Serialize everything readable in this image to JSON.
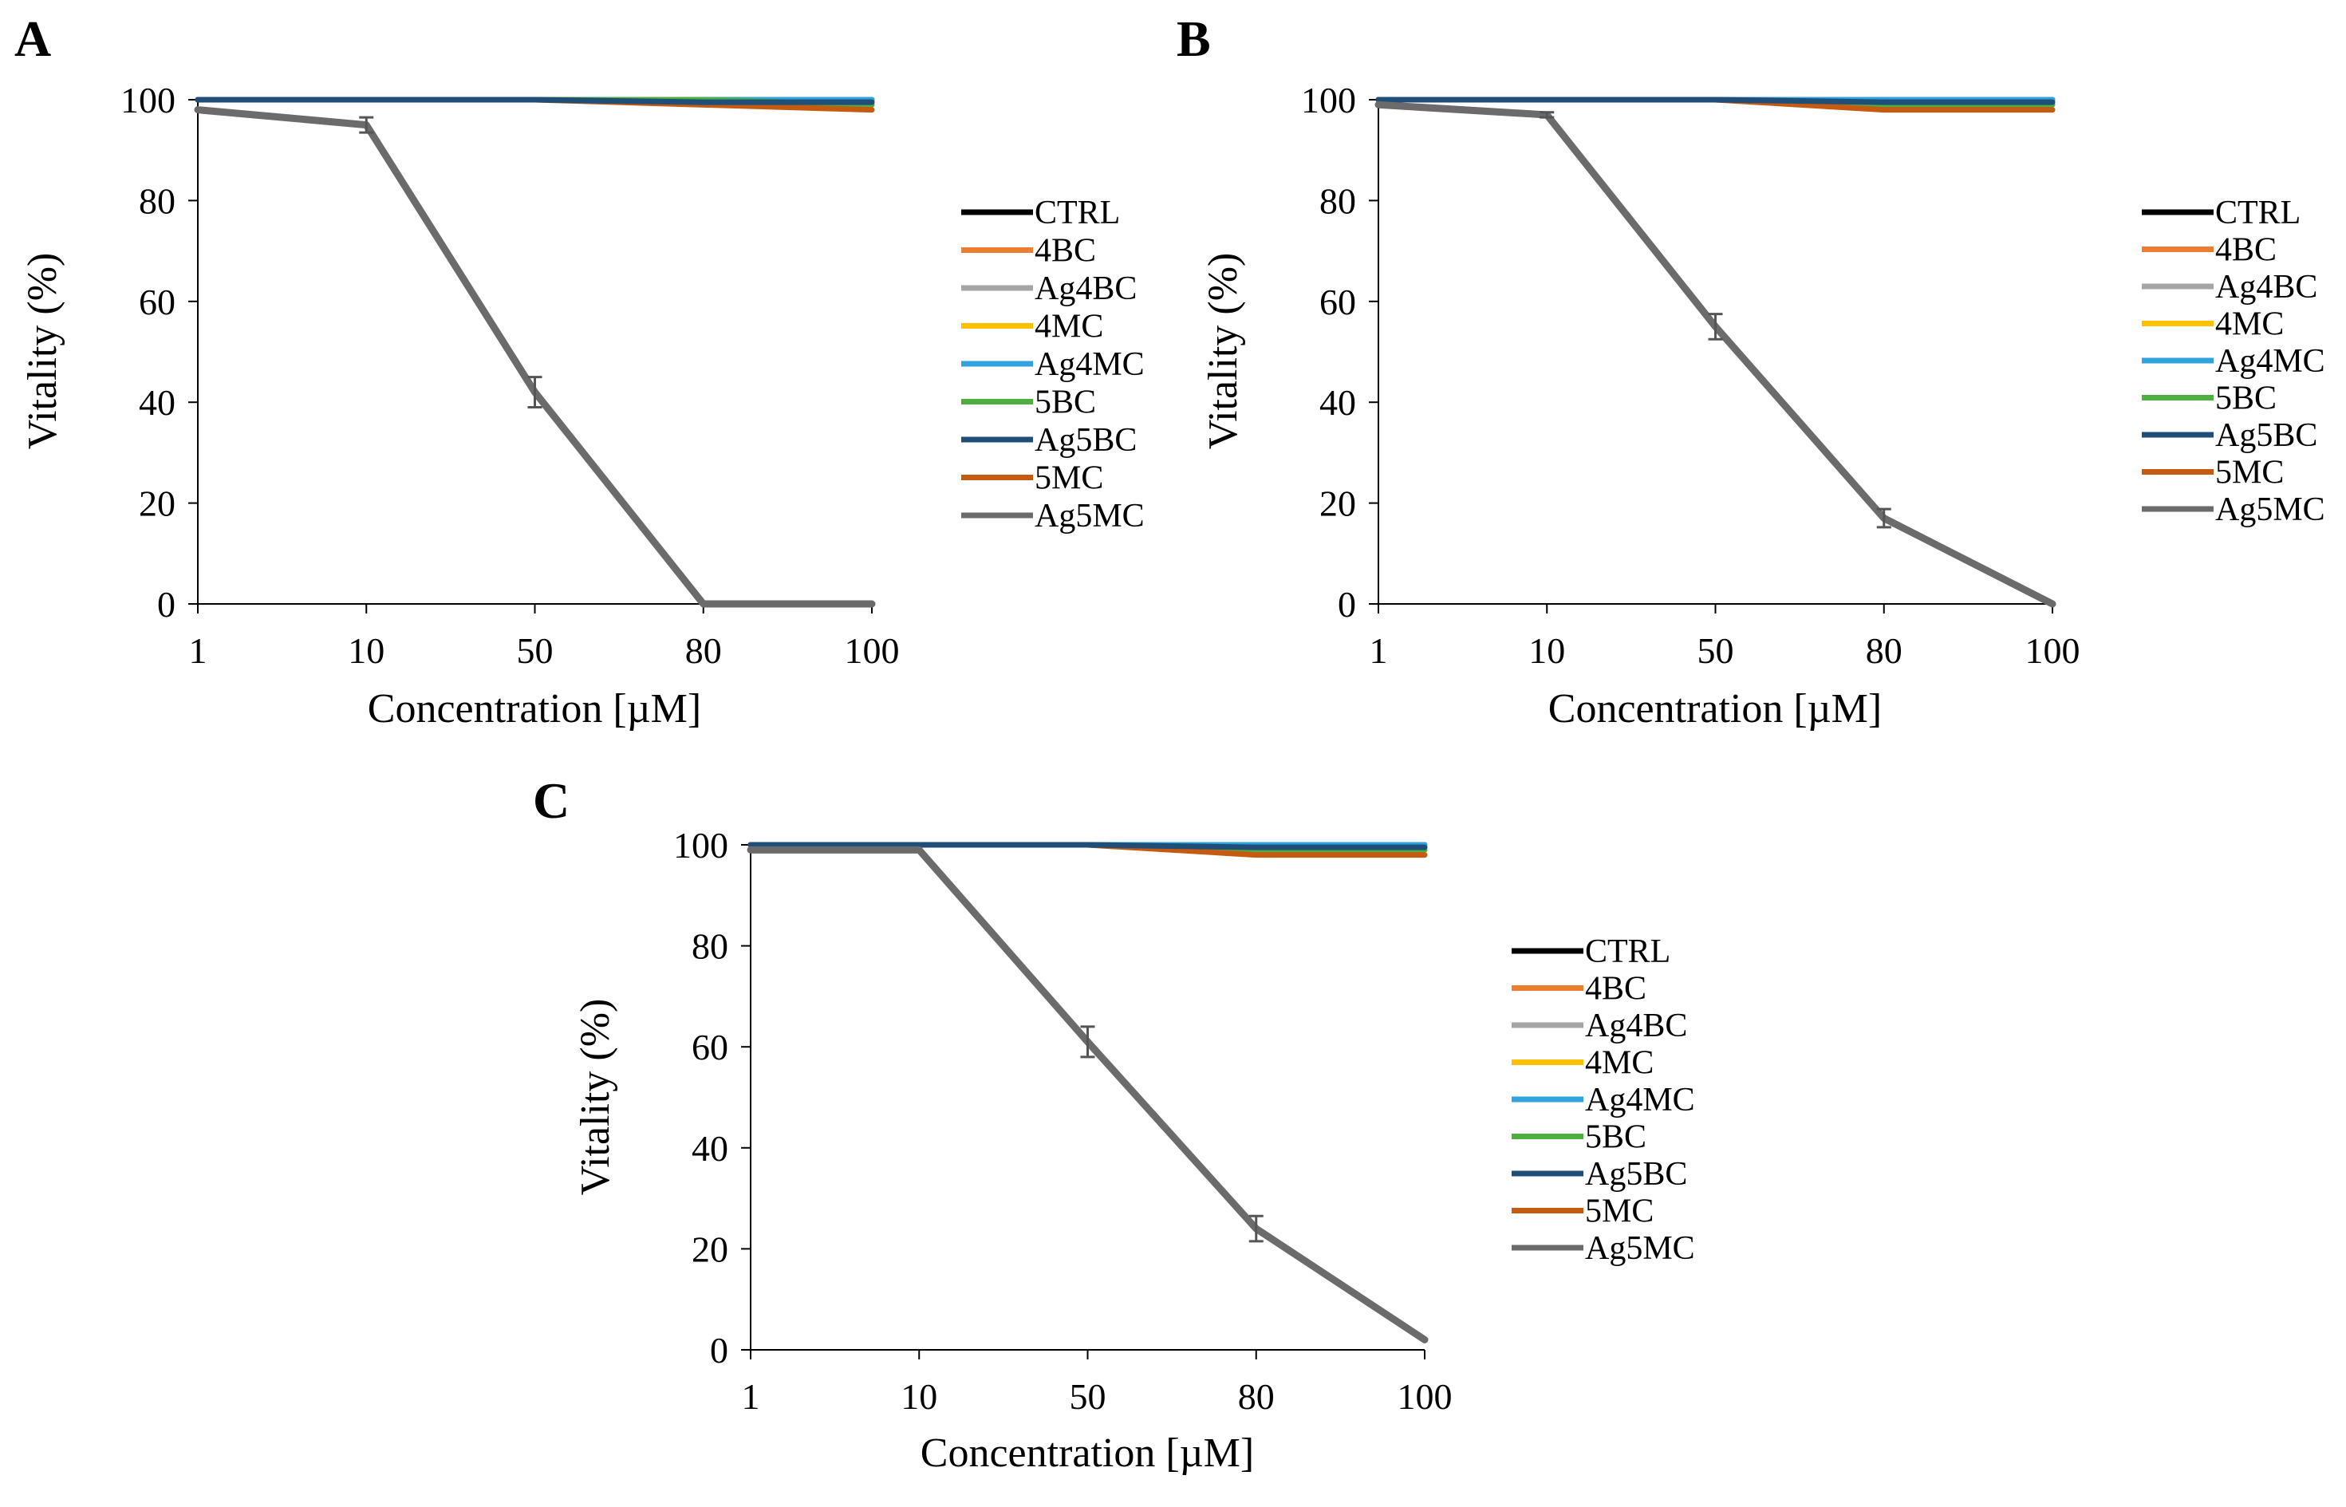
{
  "colors": {
    "CTRL": "#000000",
    "4BC": "#ED7D31",
    "Ag4BC": "#A5A5A5",
    "4MC": "#FFC000",
    "Ag4MC": "#2FA3DC",
    "5BC": "#4CAF3F",
    "Ag5BC": "#1F4E79",
    "5MC": "#C55A11",
    "Ag5MC": "#6B6B6B"
  },
  "chart_data": [
    {
      "type": "line",
      "panel": "A",
      "xlabel": "Concentration [µM]",
      "ylabel": "Vitality (%)",
      "categories": [
        "1",
        "10",
        "50",
        "80",
        "100"
      ],
      "ylim": [
        0,
        100
      ],
      "yticks": [
        0,
        20,
        40,
        60,
        80,
        100
      ],
      "legend_position": "right",
      "series": [
        {
          "name": "CTRL",
          "values": [
            100,
            100,
            100,
            100,
            100
          ]
        },
        {
          "name": "4BC",
          "values": [
            100,
            100,
            100,
            100,
            100
          ]
        },
        {
          "name": "Ag4BC",
          "values": [
            100,
            100,
            100,
            100,
            100
          ]
        },
        {
          "name": "4MC",
          "values": [
            100,
            100,
            100,
            100,
            100
          ]
        },
        {
          "name": "Ag4MC",
          "values": [
            100,
            100,
            100,
            100,
            100
          ]
        },
        {
          "name": "5BC",
          "values": [
            100,
            100,
            100,
            100,
            99
          ]
        },
        {
          "name": "Ag5BC",
          "values": [
            100,
            100,
            100,
            99.5,
            99.5
          ]
        },
        {
          "name": "5MC",
          "values": [
            100,
            100,
            100,
            99,
            98
          ]
        },
        {
          "name": "Ag5MC",
          "values": [
            98,
            95,
            42,
            0,
            0
          ],
          "error": [
            0,
            1.5,
            3,
            0,
            0
          ]
        }
      ]
    },
    {
      "type": "line",
      "panel": "B",
      "xlabel": "Concentration [µM]",
      "ylabel": "Vitality (%)",
      "categories": [
        "1",
        "10",
        "50",
        "80",
        "100"
      ],
      "ylim": [
        0,
        100
      ],
      "yticks": [
        0,
        20,
        40,
        60,
        80,
        100
      ],
      "legend_position": "right",
      "series": [
        {
          "name": "CTRL",
          "values": [
            100,
            100,
            100,
            100,
            100
          ]
        },
        {
          "name": "4BC",
          "values": [
            100,
            100,
            100,
            100,
            100
          ]
        },
        {
          "name": "Ag4BC",
          "values": [
            100,
            100,
            100,
            100,
            100
          ]
        },
        {
          "name": "4MC",
          "values": [
            100,
            100,
            100,
            100,
            100
          ]
        },
        {
          "name": "Ag4MC",
          "values": [
            100,
            100,
            100,
            100,
            100
          ]
        },
        {
          "name": "5BC",
          "values": [
            100,
            100,
            100,
            99,
            99
          ]
        },
        {
          "name": "Ag5BC",
          "values": [
            100,
            100,
            100,
            99.5,
            99.5
          ]
        },
        {
          "name": "5MC",
          "values": [
            100,
            100,
            100,
            98,
            98
          ]
        },
        {
          "name": "Ag5MC",
          "values": [
            99,
            97,
            55,
            17,
            0
          ],
          "error": [
            0,
            0.5,
            2.5,
            1.8,
            0
          ]
        }
      ]
    },
    {
      "type": "line",
      "panel": "C",
      "xlabel": "Concentration [µM]",
      "ylabel": "Vitality (%)",
      "categories": [
        "1",
        "10",
        "50",
        "80",
        "100"
      ],
      "ylim": [
        0,
        100
      ],
      "yticks": [
        0,
        20,
        40,
        60,
        80,
        100
      ],
      "legend_position": "right",
      "series": [
        {
          "name": "CTRL",
          "values": [
            100,
            100,
            100,
            100,
            100
          ]
        },
        {
          "name": "4BC",
          "values": [
            100,
            100,
            100,
            100,
            100
          ]
        },
        {
          "name": "Ag4BC",
          "values": [
            100,
            100,
            100,
            100,
            100
          ]
        },
        {
          "name": "4MC",
          "values": [
            100,
            100,
            100,
            100,
            100
          ]
        },
        {
          "name": "Ag4MC",
          "values": [
            100,
            100,
            100,
            100,
            100
          ]
        },
        {
          "name": "5BC",
          "values": [
            100,
            100,
            100,
            99,
            99
          ]
        },
        {
          "name": "Ag5BC",
          "values": [
            100,
            100,
            100,
            99.5,
            99.5
          ]
        },
        {
          "name": "5MC",
          "values": [
            100,
            100,
            100,
            98,
            98
          ]
        },
        {
          "name": "Ag5MC",
          "values": [
            99,
            99,
            61,
            24,
            2
          ],
          "error": [
            0,
            0,
            3,
            2.5,
            0
          ]
        }
      ]
    }
  ]
}
